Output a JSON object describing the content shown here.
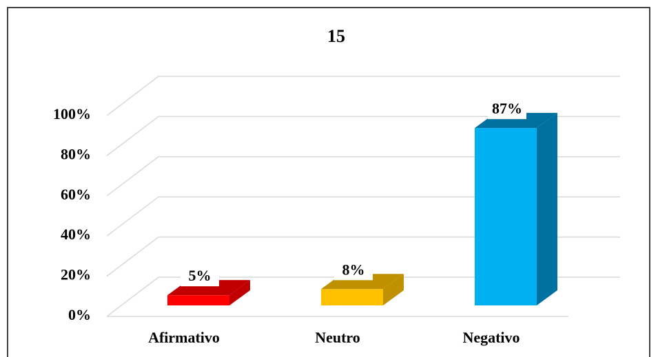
{
  "chart_data": {
    "type": "bar3d",
    "title": "15",
    "categories": [
      "Afirmativo",
      "Neutro",
      "Negativo"
    ],
    "values": [
      5,
      8,
      87
    ],
    "value_labels": [
      "5%",
      "8%",
      "87%"
    ],
    "colors": [
      "#ff0000",
      "#ffc000",
      "#00b0f0"
    ],
    "side_colors": [
      "#c00000",
      "#bf9000",
      "#0070a0"
    ],
    "ylim": [
      0,
      100
    ],
    "yticks": [
      {
        "value": 0,
        "label": "0%"
      },
      {
        "value": 20,
        "label": "20%"
      },
      {
        "value": 40,
        "label": "40%"
      },
      {
        "value": 60,
        "label": "60%"
      },
      {
        "value": 80,
        "label": "80%"
      },
      {
        "value": 100,
        "label": "100%"
      }
    ],
    "grid": true
  }
}
